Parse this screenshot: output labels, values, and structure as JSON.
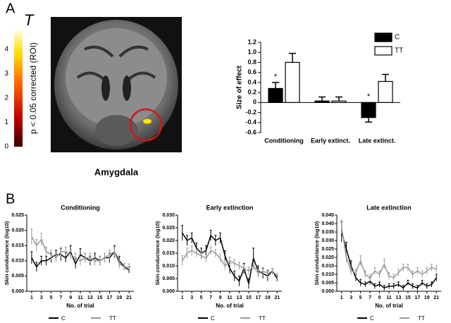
{
  "panel_labels": [
    "A",
    "B"
  ],
  "chart_data": [
    {
      "type": "colorbar",
      "title": "T",
      "ylabel": "p < 0.05 corrected (ROI)",
      "caption": "Amygdala",
      "ylim": [
        0,
        4.8
      ],
      "yticks": [
        0,
        1,
        2,
        3,
        4
      ]
    },
    {
      "type": "bar",
      "ylabel": "Size of effect",
      "categories": [
        "Conditioning",
        "Early extinct.",
        "Late extinct."
      ],
      "series": [
        {
          "name": "C",
          "color": "#000000",
          "values": [
            0.28,
            0.03,
            -0.3
          ],
          "errors": [
            0.12,
            0.08,
            0.09
          ]
        },
        {
          "name": "TT",
          "color": "#ffffff",
          "values": [
            0.8,
            0.03,
            0.42
          ],
          "errors": [
            0.18,
            0.08,
            0.14
          ]
        }
      ],
      "annotations": [
        {
          "text": "*",
          "category": 0
        },
        {
          "text": "*",
          "category": 2
        }
      ],
      "ylim": [
        -0.6,
        1.2
      ],
      "yticks": [
        -0.6,
        -0.4,
        -0.2,
        0,
        0.2,
        0.4,
        0.6,
        0.8,
        {
          "value": 1,
          "label": "1.0"
        },
        1.2
      ],
      "legend": "top-right"
    },
    {
      "type": "line",
      "title": "Conditioning",
      "xlabel": "No. of trial",
      "ylabel": "Skin conductance (log10)",
      "x": [
        1,
        2,
        3,
        4,
        5,
        6,
        7,
        8,
        9,
        10,
        11,
        12,
        13,
        14,
        15,
        16,
        17,
        18,
        19,
        20,
        21
      ],
      "series": [
        {
          "name": "C",
          "color": "#000000",
          "values": [
            0.011,
            0.008,
            0.01,
            0.01,
            0.011,
            0.012,
            0.012,
            0.011,
            0.013,
            0.009,
            0.012,
            0.011,
            0.01,
            0.011,
            0.01,
            0.011,
            0.011,
            0.013,
            0.01,
            0.008,
            0.007
          ],
          "errors": [
            0.002,
            0.0015,
            0.0015,
            0.0015,
            0.0015,
            0.0015,
            0.002,
            0.0015,
            0.002,
            0.0015,
            0.002,
            0.0015,
            0.0015,
            0.0015,
            0.0015,
            0.0015,
            0.0015,
            0.002,
            0.0015,
            0.001,
            0.001
          ]
        },
        {
          "name": "TT",
          "color": "#999999",
          "values": [
            0.018,
            0.015,
            0.017,
            0.013,
            0.012,
            0.011,
            0.013,
            0.013,
            0.012,
            0.011,
            0.01,
            0.011,
            0.011,
            0.01,
            0.01,
            0.011,
            0.012,
            0.013,
            0.009,
            0.008,
            0.008
          ],
          "errors": [
            0.0025,
            0.002,
            0.002,
            0.0015,
            0.0015,
            0.0015,
            0.0015,
            0.0015,
            0.0015,
            0.0015,
            0.0015,
            0.0015,
            0.0015,
            0.0015,
            0.0015,
            0.0015,
            0.0015,
            0.0015,
            0.0015,
            0.001,
            0.001
          ]
        }
      ],
      "xlim": [
        0,
        22
      ],
      "xticks": [
        1,
        3,
        5,
        7,
        9,
        11,
        13,
        15,
        17,
        19,
        21
      ],
      "ylim": [
        0,
        0.025
      ],
      "yticks": [
        {
          "value": 0,
          "label": "0.000"
        },
        0.005,
        {
          "value": 0.01,
          "label": "0.010"
        },
        0.015,
        {
          "value": 0.02,
          "label": "0.020"
        },
        0.025
      ]
    },
    {
      "type": "line",
      "title": "Early extinction",
      "xlabel": "No. of trial",
      "ylabel": "Skin conductance (log10)",
      "x": [
        1,
        2,
        3,
        4,
        5,
        6,
        7,
        8,
        9,
        10,
        11,
        12,
        13,
        14,
        15,
        16,
        17,
        18,
        19,
        20,
        21
      ],
      "series": [
        {
          "name": "C",
          "color": "#000000",
          "values": [
            0.023,
            0.02,
            0.021,
            0.017,
            0.015,
            0.016,
            0.022,
            0.02,
            0.021,
            0.014,
            0.009,
            0.006,
            0.004,
            0.009,
            0.003,
            0.013,
            0.008,
            0.007,
            0.006,
            0.008,
            0.005
          ],
          "errors": [
            0.003,
            0.002,
            0.002,
            0.002,
            0.002,
            0.002,
            0.002,
            0.002,
            0.002,
            0.002,
            0.002,
            0.002,
            0.002,
            0.002,
            0.002,
            0.004,
            0.002,
            0.002,
            0.002,
            0.001,
            0.001
          ]
        },
        {
          "name": "TT",
          "color": "#999999",
          "values": [
            0.012,
            0.015,
            0.016,
            0.015,
            0.014,
            0.013,
            0.016,
            0.015,
            0.013,
            0.01,
            0.012,
            0.011,
            0.01,
            0.009,
            0.008,
            0.01,
            0.007,
            0.008,
            0.007,
            0.008,
            0.006
          ],
          "errors": [
            0.002,
            0.002,
            0.002,
            0.0015,
            0.0015,
            0.0015,
            0.0015,
            0.0015,
            0.0015,
            0.0015,
            0.0015,
            0.0015,
            0.0015,
            0.0015,
            0.0015,
            0.0015,
            0.0015,
            0.0015,
            0.0015,
            0.001,
            0.001
          ]
        }
      ],
      "xlim": [
        0,
        22
      ],
      "xticks": [
        1,
        3,
        5,
        7,
        9,
        11,
        13,
        15,
        17,
        19,
        21
      ],
      "ylim": [
        0,
        0.03
      ],
      "yticks": [
        {
          "value": 0,
          "label": "0.000"
        },
        0.005,
        {
          "value": 0.01,
          "label": "0.010"
        },
        0.015,
        {
          "value": 0.02,
          "label": "0.020"
        },
        0.025,
        {
          "value": 0.03,
          "label": "0.030"
        }
      ]
    },
    {
      "type": "line",
      "title": "Late extinction",
      "xlabel": "No. of trial",
      "ylabel": "Skin conductance (log10)",
      "x": [
        1,
        2,
        3,
        4,
        5,
        6,
        7,
        8,
        9,
        10,
        11,
        12,
        13,
        14,
        15,
        16,
        17,
        18,
        19,
        20,
        21
      ],
      "series": [
        {
          "name": "C",
          "color": "#000000",
          "values": [
            0.035,
            0.025,
            0.015,
            0.008,
            0.005,
            0.004,
            0.006,
            0.003,
            0.004,
            0.002,
            0.003,
            0.003,
            0.004,
            0.002,
            0.005,
            0.003,
            0.002,
            0.005,
            0.003,
            0.004,
            0.008
          ],
          "errors": [
            0.006,
            0.004,
            0.003,
            0.002,
            0.002,
            0.0015,
            0.002,
            0.0015,
            0.0015,
            0.0015,
            0.0015,
            0.0015,
            0.0015,
            0.0015,
            0.0015,
            0.0015,
            0.0015,
            0.0015,
            0.0015,
            0.0015,
            0.002
          ]
        },
        {
          "name": "TT",
          "color": "#999999",
          "values": [
            0.038,
            0.02,
            0.012,
            0.011,
            0.018,
            0.01,
            0.008,
            0.012,
            0.01,
            0.016,
            0.009,
            0.008,
            0.011,
            0.014,
            0.014,
            0.01,
            0.012,
            0.01,
            0.012,
            0.014,
            0.013
          ],
          "errors": [
            0.004,
            0.003,
            0.002,
            0.002,
            0.003,
            0.002,
            0.002,
            0.002,
            0.002,
            0.003,
            0.002,
            0.002,
            0.002,
            0.002,
            0.002,
            0.002,
            0.002,
            0.002,
            0.002,
            0.002,
            0.002
          ]
        }
      ],
      "xlim": [
        0,
        22
      ],
      "xticks": [
        1,
        3,
        5,
        7,
        9,
        11,
        13,
        15,
        17,
        19,
        21
      ],
      "ylim": [
        0,
        0.045
      ],
      "yticks": [
        {
          "value": 0,
          "label": "0.000"
        },
        0.005,
        {
          "value": 0.01,
          "label": "0.010"
        },
        0.015,
        {
          "value": 0.02,
          "label": "0.020"
        },
        0.025,
        {
          "value": 0.03,
          "label": "0.030"
        },
        0.035,
        {
          "value": 0.04,
          "label": "0.040"
        },
        0.045
      ]
    }
  ]
}
